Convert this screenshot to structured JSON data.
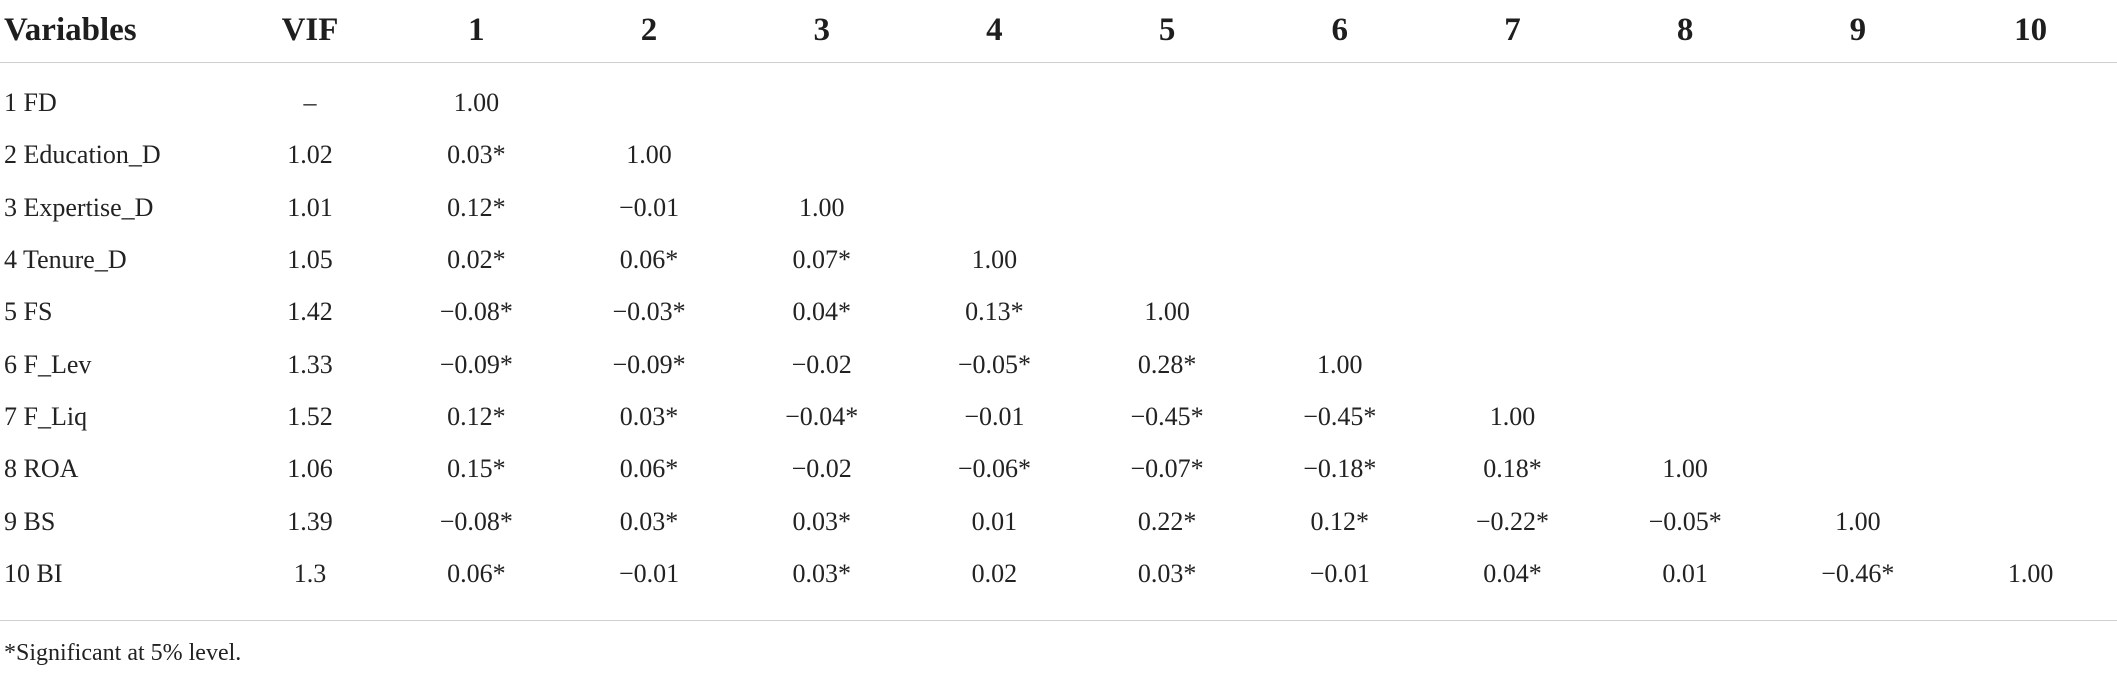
{
  "table": {
    "headers": [
      "Variables",
      "VIF",
      "1",
      "2",
      "3",
      "4",
      "5",
      "6",
      "7",
      "8",
      "9",
      "10"
    ],
    "rows": [
      [
        "1 FD",
        "–",
        "1.00",
        "",
        "",
        "",
        "",
        "",
        "",
        "",
        "",
        ""
      ],
      [
        "2 Education_D",
        "1.02",
        "0.03*",
        "1.00",
        "",
        "",
        "",
        "",
        "",
        "",
        "",
        ""
      ],
      [
        "3 Expertise_D",
        "1.01",
        "0.12*",
        "−0.01",
        "1.00",
        "",
        "",
        "",
        "",
        "",
        "",
        ""
      ],
      [
        "4 Tenure_D",
        "1.05",
        "0.02*",
        "0.06*",
        "0.07*",
        "1.00",
        "",
        "",
        "",
        "",
        "",
        ""
      ],
      [
        "5 FS",
        "1.42",
        "−0.08*",
        "−0.03*",
        "0.04*",
        "0.13*",
        "1.00",
        "",
        "",
        "",
        "",
        ""
      ],
      [
        "6 F_Lev",
        "1.33",
        "−0.09*",
        "−0.09*",
        "−0.02",
        "−0.05*",
        "0.28*",
        "1.00",
        "",
        "",
        "",
        ""
      ],
      [
        "7 F_Liq",
        "1.52",
        "0.12*",
        "0.03*",
        "−0.04*",
        "−0.01",
        "−0.45*",
        "−0.45*",
        "1.00",
        "",
        "",
        ""
      ],
      [
        "8 ROA",
        "1.06",
        "0.15*",
        "0.06*",
        "−0.02",
        "−0.06*",
        "−0.07*",
        "−0.18*",
        "0.18*",
        "1.00",
        "",
        ""
      ],
      [
        "9 BS",
        "1.39",
        "−0.08*",
        "0.03*",
        "0.03*",
        "0.01",
        "0.22*",
        "0.12*",
        "−0.22*",
        "−0.05*",
        "1.00",
        ""
      ],
      [
        "10 BI",
        "1.3",
        "0.06*",
        "−0.01",
        "0.03*",
        "0.02",
        "0.03*",
        "−0.01",
        "0.04*",
        "0.01",
        "−0.46*",
        "1.00"
      ]
    ]
  },
  "footnote": "*Significant at 5% level."
}
